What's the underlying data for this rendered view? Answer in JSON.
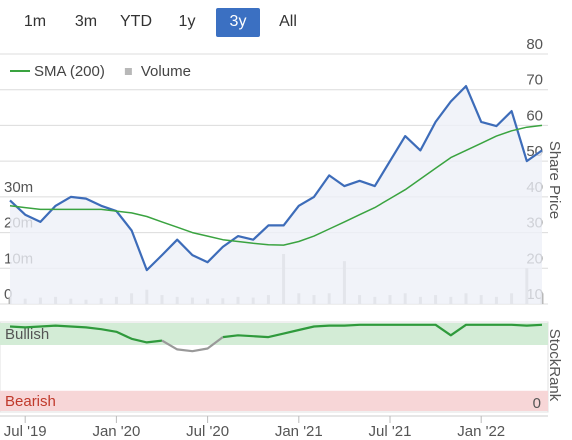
{
  "range_buttons": {
    "labels": [
      "1m",
      "3m",
      "YTD",
      "1y",
      "3y",
      "All"
    ],
    "selected": "3y"
  },
  "chart_data": [
    {
      "type": "line",
      "ylabel": "Share Price",
      "x": [
        "2019-06",
        "2019-07",
        "2019-08",
        "2019-09",
        "2019-10",
        "2019-11",
        "2019-12",
        "2020-01",
        "2020-02",
        "2020-03",
        "2020-04",
        "2020-05",
        "2020-06",
        "2020-07",
        "2020-08",
        "2020-09",
        "2020-10",
        "2020-11",
        "2020-12",
        "2021-01",
        "2021-02",
        "2021-03",
        "2021-04",
        "2021-05",
        "2021-06",
        "2021-07",
        "2021-08",
        "2021-09",
        "2021-10",
        "2021-11",
        "2021-12",
        "2022-01",
        "2022-02",
        "2022-03",
        "2022-04",
        "2022-05"
      ],
      "xlim": [
        "2019-06",
        "2022-05"
      ],
      "xticks": [
        {
          "value": "2019-07",
          "label": "Jul '19"
        },
        {
          "value": "2020-01",
          "label": "Jan '20"
        },
        {
          "value": "2020-07",
          "label": "Jul '20"
        },
        {
          "value": "2021-01",
          "label": "Jan '21"
        },
        {
          "value": "2021-07",
          "label": "Jul '21"
        },
        {
          "value": "2022-01",
          "label": "Jan '22"
        }
      ],
      "ylim": [
        10,
        80
      ],
      "yticks": [
        10,
        20,
        30,
        40,
        50,
        60,
        70,
        80
      ],
      "y2lim": [
        0,
        70
      ],
      "y2ticks": [
        0,
        {
          "value": 10,
          "label": "10m"
        },
        {
          "value": 20,
          "label": "20m"
        },
        {
          "value": 30,
          "label": "30m"
        }
      ],
      "grid": true,
      "series": [
        {
          "color": "#3d6cb9",
          "values": [
            39,
            35,
            33,
            37.5,
            40,
            39.5,
            37.5,
            36,
            30.6,
            19.5,
            23.7,
            28,
            23.7,
            21.7,
            26,
            29,
            28,
            32,
            32,
            37.5,
            40,
            46,
            43,
            44.5,
            43,
            50,
            57,
            53,
            61,
            66.7,
            71,
            61,
            59.8,
            64,
            50,
            53
          ]
        },
        {
          "name": "SMA (200)",
          "color": "#3aa340",
          "values": [
            37.5,
            37,
            36.5,
            36.5,
            36.5,
            36.5,
            36.5,
            36,
            35.5,
            34.5,
            33,
            31.5,
            30,
            29,
            28,
            27.5,
            27,
            26.6,
            26.5,
            27.5,
            29,
            31,
            33,
            35,
            37,
            39.5,
            42,
            45,
            48,
            51,
            53,
            55,
            57,
            58.5,
            59.5,
            60
          ]
        },
        {
          "name": "Volume",
          "color": "#b8b8b8",
          "axis": "y2",
          "kind": "bar",
          "values": [
            2,
            1.5,
            1.8,
            2,
            1.5,
            1.2,
            1.6,
            2,
            3,
            4,
            2.5,
            2,
            1.8,
            1.5,
            1.6,
            2,
            1.8,
            2.5,
            14,
            3,
            2.5,
            3,
            12,
            2.5,
            2,
            2.5,
            3,
            2,
            2.5,
            2,
            3,
            2.5,
            2,
            3,
            10,
            3
          ]
        }
      ]
    },
    {
      "type": "line",
      "ylabel": "StockRank",
      "x": [
        "2019-06",
        "2019-07",
        "2019-08",
        "2019-09",
        "2019-10",
        "2019-11",
        "2019-12",
        "2020-01",
        "2020-02",
        "2020-03",
        "2020-04",
        "2020-05",
        "2020-06",
        "2020-07",
        "2020-08",
        "2020-09",
        "2020-10",
        "2020-11",
        "2020-12",
        "2021-01",
        "2021-02",
        "2021-03",
        "2021-04",
        "2021-05",
        "2021-06",
        "2021-07",
        "2021-08",
        "2021-09",
        "2021-10",
        "2021-11",
        "2021-12",
        "2022-01",
        "2022-02",
        "2022-03",
        "2022-04",
        "2022-05"
      ],
      "xlim": [
        "2019-06",
        "2022-05"
      ],
      "ylim": [
        0,
        100
      ],
      "yticks": [
        0
      ],
      "bands": [
        {
          "label": "Bullish",
          "range": [
            75,
            100
          ],
          "color": "#d3ecd6",
          "text_color": "#555555"
        },
        {
          "label": "Bearish",
          "range": [
            0,
            23
          ],
          "color": "#f7d6d7",
          "text_color": "#c0392b"
        }
      ],
      "series": [
        {
          "color": "#2f9a3c",
          "values": [
            96,
            95,
            96,
            97,
            96,
            95,
            93,
            90,
            82,
            78,
            80,
            null,
            null,
            null,
            84,
            86,
            85,
            84,
            88,
            92,
            96,
            97,
            97,
            98,
            98,
            98,
            98,
            98,
            98,
            86,
            98,
            98,
            98,
            98,
            97,
            98
          ]
        },
        {
          "color": "#999999",
          "values": [
            null,
            null,
            null,
            null,
            null,
            null,
            null,
            null,
            null,
            null,
            80,
            70,
            68,
            71,
            84,
            null,
            null,
            null,
            null,
            null,
            null,
            null,
            null,
            null,
            null,
            null,
            null,
            null,
            null,
            null,
            null,
            null,
            null,
            null,
            null,
            null
          ]
        }
      ]
    }
  ]
}
